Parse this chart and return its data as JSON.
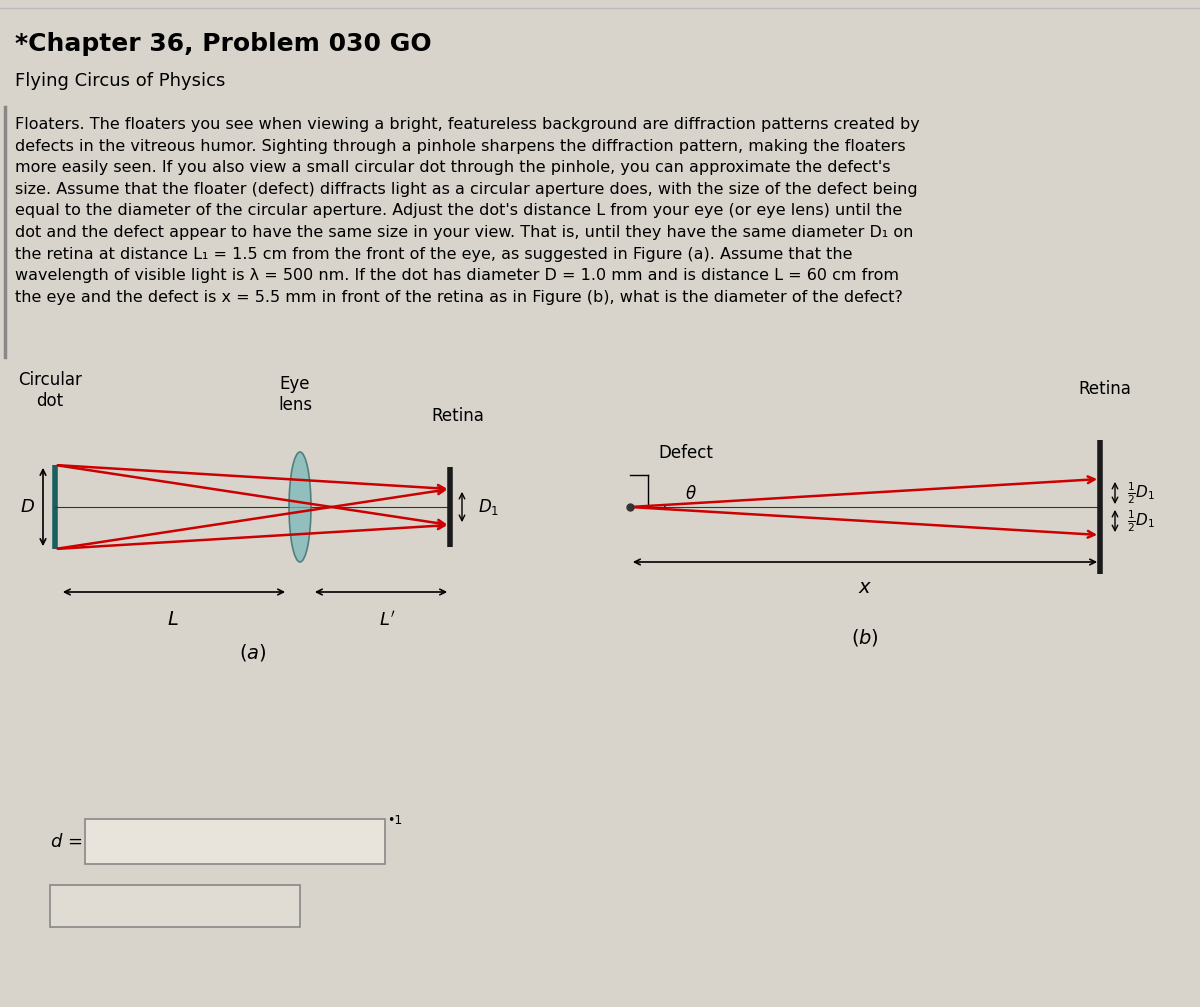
{
  "title": "*Chapter 36, Problem 030 GO",
  "subtitle": "Flying Circus of Physics",
  "body_text": "Floaters. The floaters you see when viewing a bright, featureless background are diffraction patterns created by\ndefects in the vitreous humor. Sighting through a pinhole sharpens the diffraction pattern, making the floaters\nmore easily seen. If you also view a small circular dot through the pinhole, you can approximate the defect's\nsize. Assume that the floater (defect) diffracts light as a circular aperture does, with the size of the defect being\nequal to the diameter of the circular aperture. Adjust the dot's distance L from your eye (or eye lens) until the\ndot and the defect appear to have the same size in your view. That is, until they have the same diameter D₁ on\nthe retina at distance L₁ = 1.5 cm from the front of the eye, as suggested in Figure (a). Assume that the\nwavelength of visible light is λ = 500 nm. If the dot has diameter D = 1.0 mm and is distance L = 60 cm from\nthe eye and the defect is x = 5.5 mm in front of the retina as in Figure (b), what is the diameter of the defect?",
  "fig_a_label": "(a)",
  "fig_b_label": "(b)",
  "answer_label": "d =",
  "bg_color": "#d8d4cc",
  "text_color": "#000000",
  "line_color_dark": "#1a1a1a",
  "ray_color": "#cc0000",
  "lens_color": "#7ab8b8",
  "retina_color": "#1a1a1a",
  "dot_color": "#1a5f5f"
}
